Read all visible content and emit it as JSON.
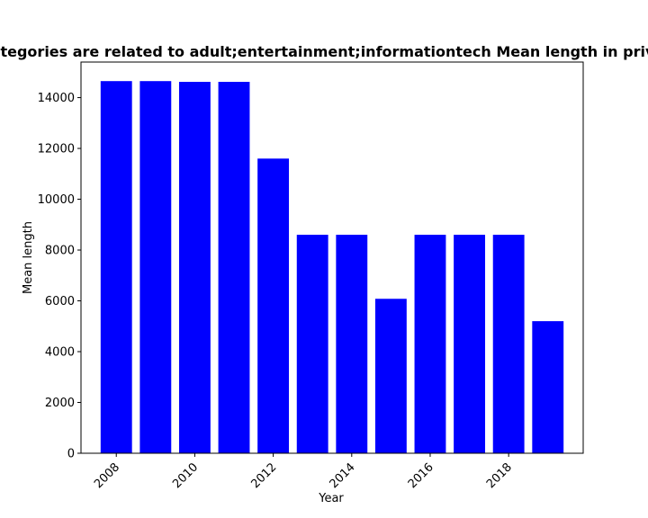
{
  "chart_data": {
    "type": "bar",
    "title": "Categories are related to adult;entertainment;informationtech Mean length in privacy",
    "xlabel": "Year",
    "ylabel": "Mean length",
    "categories": [
      "2008",
      "2009",
      "2010",
      "2011",
      "2012",
      "2013",
      "2014",
      "2015",
      "2016",
      "2017",
      "2018",
      "2019"
    ],
    "values": [
      14650,
      14650,
      14620,
      14620,
      11600,
      8600,
      8600,
      6080,
      8600,
      8600,
      8600,
      5200
    ],
    "bar_color": "#0000ff",
    "ylim": [
      0,
      15400
    ],
    "yticks": [
      "0",
      "2000",
      "4000",
      "6000",
      "8000",
      "10000",
      "12000",
      "14000"
    ],
    "xticks": [
      "2008",
      "2010",
      "2012",
      "2014",
      "2016",
      "2018"
    ],
    "x_tick_rotation": 45,
    "grid": false,
    "legend": "none"
  }
}
